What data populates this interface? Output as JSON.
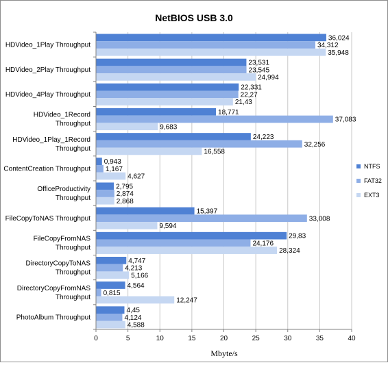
{
  "chart_data": {
    "type": "bar",
    "orientation": "horizontal",
    "title": "NetBIOS USB 3.0",
    "xlabel": "Mbyte/s",
    "ylabel": "",
    "xlim": [
      0,
      40
    ],
    "xticks": [
      "0",
      "5",
      "10",
      "15",
      "20",
      "25",
      "30",
      "35",
      "40"
    ],
    "grid": true,
    "legend_position": "right",
    "categories": [
      "HDVideo_1Play Throughput",
      "HDVideo_2Play Throughput",
      "HDVideo_4Play Throughput",
      "HDVideo_1Record Throughput",
      "HDVideo_1Play_1Record Throughput",
      "ContentCreation Throughput",
      "OfficeProductivity Throughput",
      "FileCopyToNAS Throughput",
      "FileCopyFromNAS Throughput",
      "DirectoryCopyToNAS Throughput",
      "DirectoryCopyFromNAS Throughput",
      "PhotoAlbum Throughput"
    ],
    "category_lines": [
      [
        "HDVideo_1Play Throughput"
      ],
      [
        "HDVideo_2Play Throughput"
      ],
      [
        "HDVideo_4Play Throughput"
      ],
      [
        "HDVideo_1Record",
        "Throughput"
      ],
      [
        "HDVideo_1Play_1Record",
        "Throughput"
      ],
      [
        "ContentCreation Throughput"
      ],
      [
        "OfficeProductivity",
        "Throughput"
      ],
      [
        "FileCopyToNAS Throughput"
      ],
      [
        "FileCopyFromNAS",
        "Throughput"
      ],
      [
        "DirectoryCopyToNAS",
        "Throughput"
      ],
      [
        "DirectoryCopyFromNAS",
        "Throughput"
      ],
      [
        "PhotoAlbum Throughput"
      ]
    ],
    "series": [
      {
        "name": "NTFS",
        "color": "#4f81d4",
        "values": [
          36.024,
          23.531,
          22.331,
          18.771,
          24.223,
          0.943,
          2.795,
          15.397,
          29.83,
          4.747,
          4.564,
          4.45
        ],
        "labels": [
          "36,024",
          "23,531",
          "22,331",
          "18,771",
          "24,223",
          "0,943",
          "2,795",
          "15,397",
          "29,83",
          "4,747",
          "4,564",
          "4,45"
        ]
      },
      {
        "name": "FAT32",
        "color": "#8eaee6",
        "values": [
          34.312,
          23.545,
          22.27,
          37.083,
          32.256,
          1.167,
          2.874,
          33.008,
          24.176,
          4.213,
          0.815,
          4.124
        ],
        "labels": [
          "34,312",
          "23,545",
          "22,27",
          "37,083",
          "32,256",
          "1,167",
          "2,874",
          "33,008",
          "24,176",
          "4,213",
          "0,815",
          "4,124"
        ]
      },
      {
        "name": "EXT3",
        "color": "#c5d7f2",
        "values": [
          35.948,
          24.994,
          21.43,
          9.683,
          16.558,
          4.627,
          2.868,
          9.594,
          28.324,
          5.166,
          12.247,
          4.588
        ],
        "labels": [
          "35,948",
          "24,994",
          "21,43",
          "9,683",
          "16,558",
          "4,627",
          "2,868",
          "9,594",
          "28,324",
          "5,166",
          "12,247",
          "4,588"
        ]
      }
    ]
  }
}
